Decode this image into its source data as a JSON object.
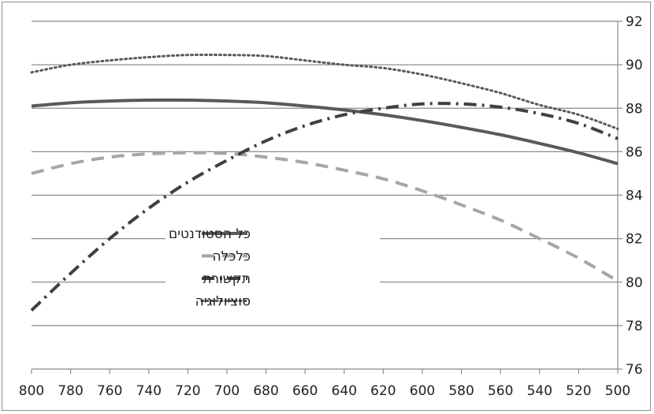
{
  "chart_data": {
    "type": "line",
    "title": "",
    "xlabel": "",
    "ylabel": "",
    "x_reversed": true,
    "xlim": [
      800,
      500
    ],
    "ylim": [
      76,
      92
    ],
    "y_axis_position": "right",
    "grid": "horizontal",
    "legend_placement": "center-left",
    "x_ticks": [
      "800",
      "780",
      "760",
      "740",
      "720",
      "700",
      "680",
      "660",
      "640",
      "620",
      "600",
      "580",
      "560",
      "540",
      "520",
      "500"
    ],
    "y_ticks": [
      "76",
      "78",
      "80",
      "82",
      "84",
      "86",
      "88",
      "90",
      "92"
    ],
    "x": [
      800,
      780,
      760,
      740,
      720,
      700,
      680,
      660,
      640,
      620,
      600,
      580,
      560,
      540,
      520,
      500
    ],
    "series": [
      {
        "name": "כל הסטודנטים",
        "color": "#595959",
        "style": "solid",
        "values": [
          88.1,
          88.25,
          88.33,
          88.37,
          88.37,
          88.33,
          88.25,
          88.1,
          87.92,
          87.7,
          87.43,
          87.12,
          86.78,
          86.38,
          85.95,
          85.45
        ]
      },
      {
        "name": "כלכלה",
        "color": "#a6a6a6",
        "style": "dashed",
        "values": [
          85.0,
          85.45,
          85.75,
          85.9,
          85.95,
          85.92,
          85.75,
          85.5,
          85.15,
          84.75,
          84.2,
          83.55,
          82.85,
          82.0,
          81.1,
          80.05
        ]
      },
      {
        "name": "תקשורת",
        "color": "#404040",
        "style": "dash-dot",
        "values": [
          78.7,
          80.4,
          82.0,
          83.4,
          84.6,
          85.6,
          86.5,
          87.2,
          87.7,
          88.0,
          88.2,
          88.2,
          88.05,
          87.75,
          87.3,
          86.6
        ]
      },
      {
        "name": "סוציולוגיה",
        "color": "#595959",
        "style": "dotted",
        "values": [
          89.65,
          90.0,
          90.2,
          90.35,
          90.45,
          90.45,
          90.4,
          90.2,
          90.0,
          89.85,
          89.55,
          89.15,
          88.7,
          88.15,
          87.7,
          87.05
        ]
      }
    ]
  }
}
